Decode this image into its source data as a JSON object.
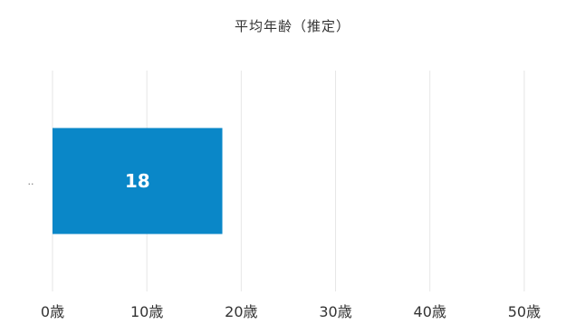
{
  "chart_data": {
    "type": "bar",
    "orientation": "horizontal",
    "title": "平均年齢（推定）",
    "categories": [
      ".."
    ],
    "values": [
      18
    ],
    "data_labels": [
      "18"
    ],
    "xlim": [
      0,
      55
    ],
    "x_ticks": [
      {
        "value": 0,
        "label": "0歳"
      },
      {
        "value": 10,
        "label": "10歳"
      },
      {
        "value": 20,
        "label": "20歳"
      },
      {
        "value": 30,
        "label": "30歳"
      },
      {
        "value": 40,
        "label": "40歳"
      },
      {
        "value": 50,
        "label": "50歳"
      }
    ],
    "grid": true,
    "bar_color": "#0a87c8",
    "grid_color": "#e6e6e6"
  }
}
